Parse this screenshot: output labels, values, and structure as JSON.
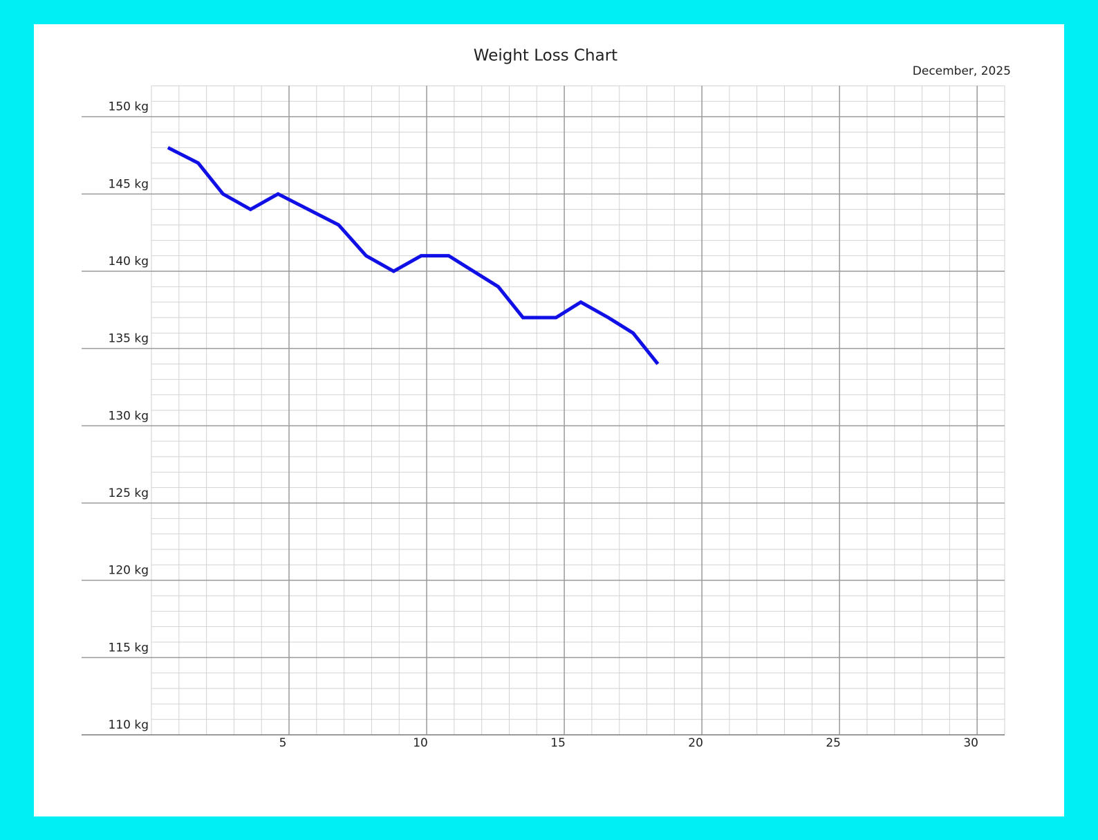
{
  "chart_data": {
    "type": "line",
    "title": "Weight Loss Chart",
    "subtitle": "December, 2025",
    "x": [
      0.6,
      1.7,
      2.6,
      3.6,
      4.6,
      6.8,
      7.8,
      8.8,
      9.8,
      10.8,
      12.6,
      13.5,
      14.7,
      15.6,
      16.6,
      17.5,
      18.4
    ],
    "series": [
      {
        "color": "#1010e6",
        "values": [
          148,
          147,
          145,
          144,
          145,
          143,
          141,
          140,
          141,
          141,
          139,
          137,
          137,
          138,
          137,
          136,
          134
        ]
      }
    ],
    "xlim": [
      0,
      31
    ],
    "xticks": [
      5,
      10,
      15,
      20,
      25,
      30
    ],
    "ylim": [
      110,
      152
    ],
    "yticks": [
      {
        "value": 110,
        "label": "110 kg"
      },
      {
        "value": 115,
        "label": "115 kg"
      },
      {
        "value": 120,
        "label": "120 kg"
      },
      {
        "value": 125,
        "label": "125 kg"
      },
      {
        "value": 130,
        "label": "130 kg"
      },
      {
        "value": 135,
        "label": "135 kg"
      },
      {
        "value": 140,
        "label": "140 kg"
      },
      {
        "value": 145,
        "label": "145 kg"
      },
      {
        "value": 150,
        "label": "150 kg"
      }
    ],
    "grid": true,
    "minor_grid_step": {
      "x": 1,
      "y": 1
    }
  }
}
